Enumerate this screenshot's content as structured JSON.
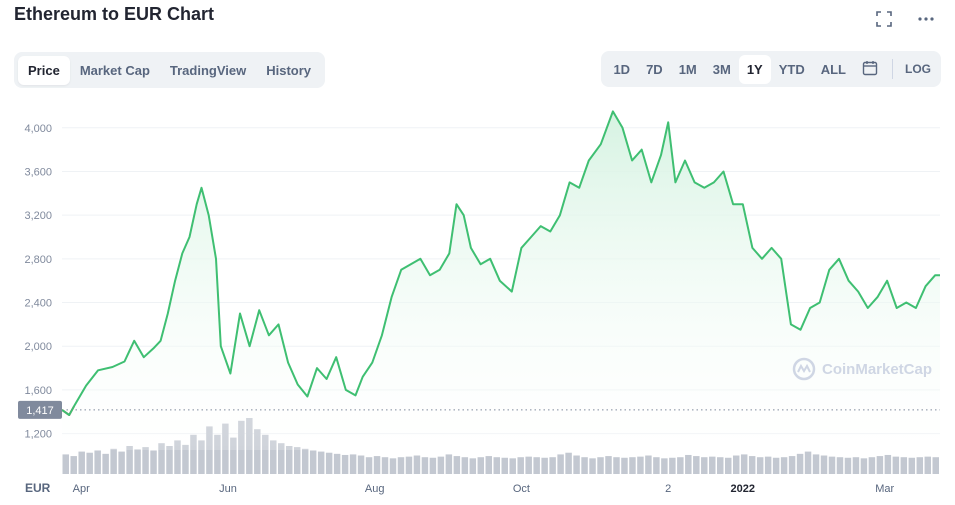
{
  "title": "Ethereum to EUR Chart",
  "top_icons": [
    "fullscreen-icon",
    "more-icon"
  ],
  "tabs": [
    {
      "label": "Price",
      "active": true
    },
    {
      "label": "Market Cap",
      "active": false
    },
    {
      "label": "TradingView",
      "active": false
    },
    {
      "label": "History",
      "active": false
    }
  ],
  "ranges": [
    {
      "label": "1D",
      "active": false
    },
    {
      "label": "7D",
      "active": false
    },
    {
      "label": "1M",
      "active": false
    },
    {
      "label": "3M",
      "active": false
    },
    {
      "label": "1Y",
      "active": true
    },
    {
      "label": "YTD",
      "active": false
    },
    {
      "label": "ALL",
      "active": false
    }
  ],
  "calendar_icon": "calendar-icon",
  "log_label": "LOG",
  "watermark": "CoinMarketCap",
  "colors": {
    "line": "#3fbf72",
    "area_top": "#d6f3e2",
    "red": "#ea3943",
    "baseline_badge": "#808a9d",
    "volume": "#c3c8d1",
    "grid": "#eff2f5"
  },
  "chart_data": {
    "type": "line",
    "currency": "EUR",
    "y_ticks": [
      "4,000",
      "3,600",
      "3,200",
      "2,800",
      "2,400",
      "2,000",
      "1,600",
      "1,200"
    ],
    "y_tick_values": [
      4000,
      3600,
      3200,
      2800,
      2400,
      2000,
      1600,
      1200
    ],
    "ylim": [
      1050,
      4300
    ],
    "baseline_label": "1,417",
    "baseline_value": 1417,
    "x_labels": [
      "Apr",
      "Jun",
      "Aug",
      "Oct",
      "2",
      "2022",
      "Mar"
    ],
    "x_label_dates": [
      "2021-04-01",
      "2021-06-01",
      "2021-08-01",
      "2021-10-01",
      "2021-12-01",
      "2022-01-01",
      "2022-03-01"
    ],
    "x_range": [
      "2021-03-24",
      "2022-03-24"
    ],
    "series": [
      {
        "points": [
          [
            "2021-03-24",
            1417
          ],
          [
            "2021-03-27",
            1370
          ],
          [
            "2021-03-29",
            1450
          ],
          [
            "2021-04-03",
            1640
          ],
          [
            "2021-04-08",
            1780
          ],
          [
            "2021-04-14",
            1810
          ],
          [
            "2021-04-19",
            1860
          ],
          [
            "2021-04-23",
            2050
          ],
          [
            "2021-04-27",
            1900
          ],
          [
            "2021-05-01",
            1980
          ],
          [
            "2021-05-04",
            2050
          ],
          [
            "2021-05-07",
            2300
          ],
          [
            "2021-05-10",
            2600
          ],
          [
            "2021-05-13",
            2850
          ],
          [
            "2021-05-16",
            3000
          ],
          [
            "2021-05-19",
            3300
          ],
          [
            "2021-05-21",
            3450
          ],
          [
            "2021-05-24",
            3200
          ],
          [
            "2021-05-27",
            2800
          ],
          [
            "2021-05-29",
            2000
          ],
          [
            "2021-06-02",
            1750
          ],
          [
            "2021-06-06",
            2300
          ],
          [
            "2021-06-10",
            2000
          ],
          [
            "2021-06-14",
            2330
          ],
          [
            "2021-06-18",
            2100
          ],
          [
            "2021-06-22",
            2200
          ],
          [
            "2021-06-26",
            1850
          ],
          [
            "2021-06-30",
            1650
          ],
          [
            "2021-07-04",
            1540
          ],
          [
            "2021-07-08",
            1800
          ],
          [
            "2021-07-12",
            1700
          ],
          [
            "2021-07-16",
            1900
          ],
          [
            "2021-07-20",
            1600
          ],
          [
            "2021-07-24",
            1550
          ],
          [
            "2021-07-27",
            1720
          ],
          [
            "2021-07-31",
            1850
          ],
          [
            "2021-08-04",
            2100
          ],
          [
            "2021-08-08",
            2450
          ],
          [
            "2021-08-12",
            2700
          ],
          [
            "2021-08-16",
            2750
          ],
          [
            "2021-08-20",
            2800
          ],
          [
            "2021-08-24",
            2650
          ],
          [
            "2021-08-28",
            2700
          ],
          [
            "2021-09-01",
            2850
          ],
          [
            "2021-09-04",
            3300
          ],
          [
            "2021-09-07",
            3200
          ],
          [
            "2021-09-10",
            2900
          ],
          [
            "2021-09-14",
            2750
          ],
          [
            "2021-09-18",
            2800
          ],
          [
            "2021-09-22",
            2600
          ],
          [
            "2021-09-27",
            2500
          ],
          [
            "2021-10-01",
            2900
          ],
          [
            "2021-10-05",
            3000
          ],
          [
            "2021-10-09",
            3100
          ],
          [
            "2021-10-13",
            3050
          ],
          [
            "2021-10-17",
            3200
          ],
          [
            "2021-10-21",
            3500
          ],
          [
            "2021-10-25",
            3450
          ],
          [
            "2021-10-29",
            3700
          ],
          [
            "2021-11-03",
            3850
          ],
          [
            "2021-11-08",
            4150
          ],
          [
            "2021-11-12",
            4000
          ],
          [
            "2021-11-16",
            3700
          ],
          [
            "2021-11-20",
            3800
          ],
          [
            "2021-11-24",
            3500
          ],
          [
            "2021-11-28",
            3750
          ],
          [
            "2021-12-01",
            4050
          ],
          [
            "2021-12-04",
            3500
          ],
          [
            "2021-12-08",
            3700
          ],
          [
            "2021-12-12",
            3500
          ],
          [
            "2021-12-16",
            3450
          ],
          [
            "2021-12-20",
            3500
          ],
          [
            "2021-12-24",
            3600
          ],
          [
            "2021-12-28",
            3300
          ],
          [
            "2022-01-01",
            3300
          ],
          [
            "2022-01-05",
            2900
          ],
          [
            "2022-01-09",
            2800
          ],
          [
            "2022-01-13",
            2900
          ],
          [
            "2022-01-17",
            2800
          ],
          [
            "2022-01-21",
            2200
          ],
          [
            "2022-01-25",
            2150
          ],
          [
            "2022-01-29",
            2350
          ],
          [
            "2022-02-02",
            2400
          ],
          [
            "2022-02-06",
            2700
          ],
          [
            "2022-02-10",
            2800
          ],
          [
            "2022-02-14",
            2600
          ],
          [
            "2022-02-18",
            2500
          ],
          [
            "2022-02-22",
            2350
          ],
          [
            "2022-02-26",
            2450
          ],
          [
            "2022-03-02",
            2600
          ],
          [
            "2022-03-06",
            2350
          ],
          [
            "2022-03-10",
            2400
          ],
          [
            "2022-03-14",
            2350
          ],
          [
            "2022-03-18",
            2550
          ],
          [
            "2022-03-22",
            2650
          ],
          [
            "2022-03-24",
            2650
          ]
        ]
      }
    ],
    "volume": {
      "shown": true,
      "relative_heights": [
        0.35,
        0.32,
        0.4,
        0.38,
        0.42,
        0.36,
        0.45,
        0.4,
        0.5,
        0.44,
        0.48,
        0.42,
        0.55,
        0.5,
        0.6,
        0.52,
        0.7,
        0.6,
        0.85,
        0.7,
        0.9,
        0.65,
        0.95,
        1.0,
        0.8,
        0.7,
        0.6,
        0.55,
        0.5,
        0.48,
        0.45,
        0.42,
        0.4,
        0.38,
        0.36,
        0.34,
        0.35,
        0.33,
        0.3,
        0.32,
        0.3,
        0.28,
        0.3,
        0.31,
        0.33,
        0.3,
        0.29,
        0.31,
        0.35,
        0.32,
        0.3,
        0.28,
        0.3,
        0.32,
        0.3,
        0.29,
        0.28,
        0.3,
        0.31,
        0.3,
        0.29,
        0.3,
        0.35,
        0.38,
        0.33,
        0.3,
        0.28,
        0.3,
        0.32,
        0.3,
        0.29,
        0.3,
        0.31,
        0.33,
        0.3,
        0.28,
        0.29,
        0.3,
        0.34,
        0.32,
        0.3,
        0.31,
        0.3,
        0.29,
        0.33,
        0.35,
        0.32,
        0.3,
        0.31,
        0.29,
        0.3,
        0.32,
        0.36,
        0.4,
        0.35,
        0.33,
        0.31,
        0.3,
        0.29,
        0.3,
        0.28,
        0.3,
        0.32,
        0.34,
        0.31,
        0.3,
        0.29,
        0.3,
        0.31,
        0.3
      ]
    },
    "grid": true
  }
}
